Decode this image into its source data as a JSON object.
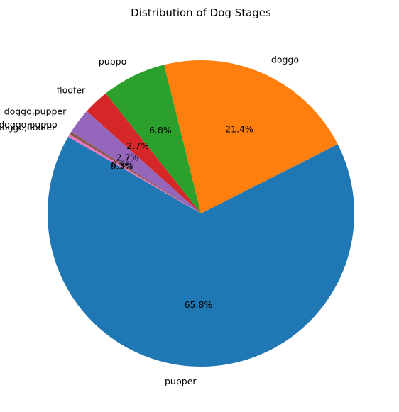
{
  "chart_data": {
    "type": "pie",
    "title": "Distribution of Dog Stages",
    "start_angle_deg": 150,
    "direction": "counterclockwise",
    "slices": [
      {
        "label": "pupper",
        "value": 65.8,
        "pct_label": "65.8%",
        "color": "#1f77b4"
      },
      {
        "label": "doggo",
        "value": 21.4,
        "pct_label": "21.4%",
        "color": "#ff7f0e"
      },
      {
        "label": "puppo",
        "value": 6.8,
        "pct_label": "6.8%",
        "color": "#2ca02c"
      },
      {
        "label": "floofer",
        "value": 2.7,
        "pct_label": "2.7%",
        "color": "#d62728"
      },
      {
        "label": "doggo,pupper",
        "value": 2.7,
        "pct_label": "2.7%",
        "color": "#9467bd"
      },
      {
        "label": "doggo,puppo",
        "value": 0.3,
        "pct_label": "0.3%",
        "color": "#8c564b"
      },
      {
        "label": "doggo,floofer",
        "value": 0.3,
        "pct_label": "0.3%",
        "color": "#e377c2"
      }
    ]
  }
}
